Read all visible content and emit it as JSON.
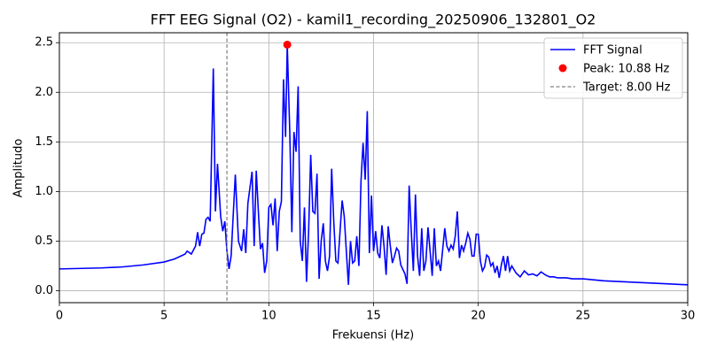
{
  "chart_data": {
    "type": "line",
    "title": "FFT EEG Signal (O2) - kamil1_recording_20250906_132801_O2",
    "x_label": "Frekuensi (Hz)",
    "y_label": "Amplitudo",
    "x": [
      0,
      2,
      3,
      4,
      5,
      5.5,
      6,
      6.1,
      6.3,
      6.5,
      6.6,
      6.7,
      6.8,
      6.9,
      7.0,
      7.1,
      7.2,
      7.35,
      7.45,
      7.55,
      7.7,
      7.8,
      7.9,
      8.0,
      8.1,
      8.2,
      8.4,
      8.55,
      8.7,
      8.8,
      8.9,
      9.0,
      9.2,
      9.3,
      9.4,
      9.5,
      9.6,
      9.7,
      9.8,
      9.9,
      10.0,
      10.1,
      10.2,
      10.3,
      10.4,
      10.5,
      10.6,
      10.7,
      10.8,
      10.88,
      11.0,
      11.1,
      11.2,
      11.3,
      11.4,
      11.5,
      11.6,
      11.7,
      11.8,
      11.9,
      12.0,
      12.1,
      12.2,
      12.3,
      12.4,
      12.5,
      12.6,
      12.7,
      12.8,
      12.9,
      13.0,
      13.1,
      13.2,
      13.3,
      13.4,
      13.5,
      13.6,
      13.7,
      13.8,
      13.9,
      14.0,
      14.1,
      14.2,
      14.3,
      14.4,
      14.5,
      14.6,
      14.7,
      14.8,
      14.9,
      15.0,
      15.1,
      15.2,
      15.3,
      15.4,
      15.5,
      15.6,
      15.7,
      15.8,
      15.9,
      16.0,
      16.1,
      16.2,
      16.3,
      16.5,
      16.6,
      16.7,
      16.8,
      16.9,
      17.0,
      17.1,
      17.2,
      17.3,
      17.4,
      17.5,
      17.6,
      17.7,
      17.8,
      17.9,
      18.0,
      18.1,
      18.2,
      18.4,
      18.5,
      18.6,
      18.7,
      18.8,
      18.9,
      19.0,
      19.1,
      19.2,
      19.3,
      19.4,
      19.5,
      19.6,
      19.7,
      19.8,
      19.9,
      20.0,
      20.1,
      20.2,
      20.3,
      20.4,
      20.5,
      20.6,
      20.7,
      20.8,
      20.9,
      21.0,
      21.1,
      21.2,
      21.3,
      21.4,
      21.5,
      21.6,
      21.8,
      22.0,
      22.2,
      22.4,
      22.6,
      22.8,
      23.0,
      23.2,
      23.4,
      23.6,
      23.8,
      24.0,
      24.2,
      24.5,
      25,
      26,
      27,
      28,
      29,
      30
    ],
    "series": [
      {
        "name": "FFT Signal",
        "color": "#0000ff",
        "values": [
          0.22,
          0.23,
          0.24,
          0.26,
          0.29,
          0.32,
          0.37,
          0.4,
          0.37,
          0.45,
          0.59,
          0.45,
          0.57,
          0.58,
          0.72,
          0.74,
          0.7,
          2.24,
          0.8,
          1.28,
          0.75,
          0.6,
          0.7,
          0.4,
          0.22,
          0.35,
          1.17,
          0.5,
          0.4,
          0.62,
          0.38,
          0.88,
          1.2,
          0.45,
          1.21,
          0.8,
          0.42,
          0.48,
          0.18,
          0.3,
          0.84,
          0.87,
          0.66,
          0.93,
          0.4,
          0.8,
          0.9,
          2.13,
          1.55,
          2.48,
          1.6,
          0.59,
          1.6,
          1.4,
          2.06,
          0.5,
          0.3,
          0.84,
          0.09,
          0.6,
          1.37,
          0.8,
          0.78,
          1.18,
          0.12,
          0.5,
          0.68,
          0.3,
          0.2,
          0.35,
          1.23,
          0.7,
          0.3,
          0.28,
          0.6,
          0.91,
          0.75,
          0.4,
          0.06,
          0.5,
          0.28,
          0.3,
          0.55,
          0.25,
          1.1,
          1.49,
          1.12,
          1.81,
          0.38,
          0.96,
          0.4,
          0.6,
          0.38,
          0.33,
          0.66,
          0.45,
          0.16,
          0.65,
          0.45,
          0.28,
          0.35,
          0.43,
          0.4,
          0.26,
          0.17,
          0.07,
          1.06,
          0.6,
          0.2,
          0.97,
          0.35,
          0.15,
          0.63,
          0.2,
          0.3,
          0.64,
          0.4,
          0.15,
          0.63,
          0.25,
          0.3,
          0.2,
          0.63,
          0.45,
          0.4,
          0.46,
          0.42,
          0.55,
          0.8,
          0.33,
          0.46,
          0.4,
          0.48,
          0.58,
          0.52,
          0.35,
          0.35,
          0.57,
          0.57,
          0.3,
          0.2,
          0.24,
          0.36,
          0.34,
          0.25,
          0.28,
          0.18,
          0.25,
          0.13,
          0.26,
          0.35,
          0.2,
          0.35,
          0.2,
          0.25,
          0.18,
          0.14,
          0.2,
          0.16,
          0.17,
          0.15,
          0.19,
          0.16,
          0.14,
          0.14,
          0.13,
          0.13,
          0.13,
          0.12,
          0.12,
          0.1,
          0.09,
          0.08,
          0.07,
          0.06
        ]
      }
    ],
    "peak": {
      "name": "Peak: 10.88 Hz",
      "x": 10.88,
      "value": 2.48,
      "color": "#ff0000"
    },
    "target": {
      "name": "Target: 8.00 Hz",
      "x": 8,
      "color": "#808080"
    },
    "xlim": [
      0,
      30
    ],
    "ylim": [
      -0.12,
      2.6
    ],
    "xticks": [
      0,
      5,
      10,
      15,
      20,
      25,
      30
    ],
    "yticks": [
      {
        "value": 0,
        "label": "0.0"
      },
      {
        "value": 0.5,
        "label": "0.5"
      },
      {
        "value": 1,
        "label": "1.0"
      },
      {
        "value": 1.5,
        "label": "1.5"
      },
      {
        "value": 2,
        "label": "2.0"
      },
      {
        "value": 2.5,
        "label": "2.5"
      }
    ],
    "grid": true,
    "legend": "upper right"
  }
}
